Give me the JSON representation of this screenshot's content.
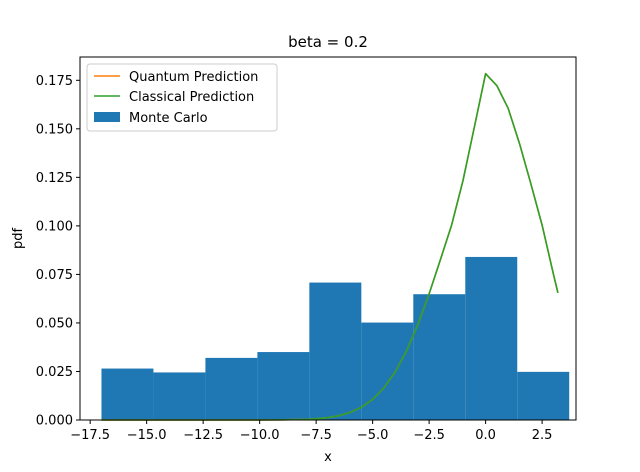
{
  "chart_data": {
    "type": "bar",
    "title": "beta = 0.2",
    "xlabel": "x",
    "ylabel": "pdf",
    "xlim": [
      -17.95,
      4.0
    ],
    "ylim": [
      0.0,
      0.187
    ],
    "xticks": [
      -17.5,
      -15.0,
      -12.5,
      -10.0,
      -7.5,
      -5.0,
      -2.5,
      0.0,
      2.5
    ],
    "xtick_labels": [
      "−17.5",
      "−15.0",
      "−12.5",
      "−10.0",
      "−7.5",
      "−5.0",
      "−2.5",
      "0.0",
      "2.5"
    ],
    "yticks": [
      0.0,
      0.025,
      0.05,
      0.075,
      0.1,
      0.125,
      0.15,
      0.175
    ],
    "ytick_labels": [
      "0.000",
      "0.025",
      "0.050",
      "0.075",
      "0.100",
      "0.125",
      "0.150",
      "0.175"
    ],
    "grid": false,
    "legend_position": "top-left",
    "histogram": {
      "name": "Monte Carlo",
      "color": "#1f77b4",
      "bin_edges": [
        -17.0,
        -14.7,
        -12.4,
        -10.1,
        -7.8,
        -5.5,
        -3.2,
        -0.9,
        1.4,
        3.7
      ],
      "values": [
        0.0265,
        0.0245,
        0.032,
        0.035,
        0.0708,
        0.0502,
        0.0648,
        0.084,
        0.0248
      ]
    },
    "series": [
      {
        "name": "Quantum Prediction",
        "color": "#ff7f0e",
        "x": [
          -17.0,
          -16.0,
          -15.0,
          -14.0,
          -13.0,
          -12.0,
          -11.0,
          -10.0,
          -9.0,
          -8.0,
          -7.5,
          -7.0,
          -6.5,
          -6.0,
          -5.5,
          -5.0,
          -4.5,
          -4.0,
          -3.5,
          -3.0,
          -2.5,
          -2.0,
          -1.5,
          -1.0,
          -0.5,
          0.0,
          0.5,
          1.0,
          1.5,
          2.0,
          2.5,
          3.0,
          3.2
        ],
        "y": [
          0.0,
          0.0,
          0.0,
          0.0,
          0.0,
          0.0,
          0.0,
          0.0,
          0.0001,
          0.0003,
          0.0006,
          0.0012,
          0.0022,
          0.0039,
          0.0065,
          0.0106,
          0.0166,
          0.0248,
          0.0356,
          0.0491,
          0.065,
          0.0826,
          0.1006,
          0.1234,
          0.1508,
          0.1784,
          0.1722,
          0.1605,
          0.1424,
          0.1218,
          0.1004,
          0.0752,
          0.0655
        ]
      },
      {
        "name": "Classical Prediction",
        "color": "#2ca02c",
        "x": [
          -17.0,
          -16.0,
          -15.0,
          -14.0,
          -13.0,
          -12.0,
          -11.0,
          -10.0,
          -9.0,
          -8.0,
          -7.5,
          -7.0,
          -6.5,
          -6.0,
          -5.5,
          -5.0,
          -4.5,
          -4.0,
          -3.5,
          -3.0,
          -2.5,
          -2.0,
          -1.5,
          -1.0,
          -0.5,
          0.0,
          0.5,
          1.0,
          1.5,
          2.0,
          2.5,
          3.0,
          3.2
        ],
        "y": [
          0.0,
          0.0,
          0.0,
          0.0,
          0.0,
          0.0,
          0.0,
          0.0,
          0.0001,
          0.0003,
          0.0006,
          0.0012,
          0.0022,
          0.0039,
          0.0065,
          0.0106,
          0.0166,
          0.0248,
          0.0356,
          0.0491,
          0.065,
          0.0826,
          0.1006,
          0.1234,
          0.1508,
          0.1784,
          0.1722,
          0.1605,
          0.1424,
          0.1218,
          0.1004,
          0.0752,
          0.0655
        ]
      }
    ]
  }
}
